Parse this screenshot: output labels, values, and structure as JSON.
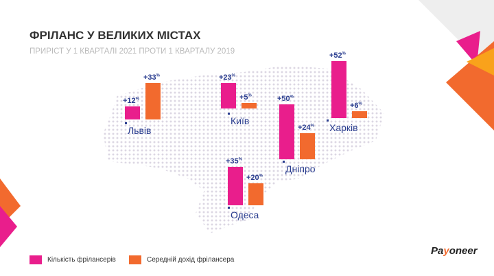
{
  "chart_data": {
    "type": "bar",
    "title": "ФРІЛАНС У ВЕЛИКИХ МІСТАХ",
    "subtitle": "ПРИРІСТ У 1 КВАРТАЛІ 2021 ПРОТИ 1 КВАРТАЛУ 2019",
    "categories": [
      "Львів",
      "Київ",
      "Дніпро",
      "Харків",
      "Одеса"
    ],
    "series": [
      {
        "name": "Кількість фрілансерів",
        "color": "#e91e8c",
        "values": [
          12,
          23,
          50,
          52,
          35
        ]
      },
      {
        "name": "Середній дохід фрілансера",
        "color": "#f26a2e",
        "values": [
          33,
          5,
          24,
          6,
          20
        ]
      }
    ],
    "unit": "%"
  },
  "logo": "Payoneer"
}
